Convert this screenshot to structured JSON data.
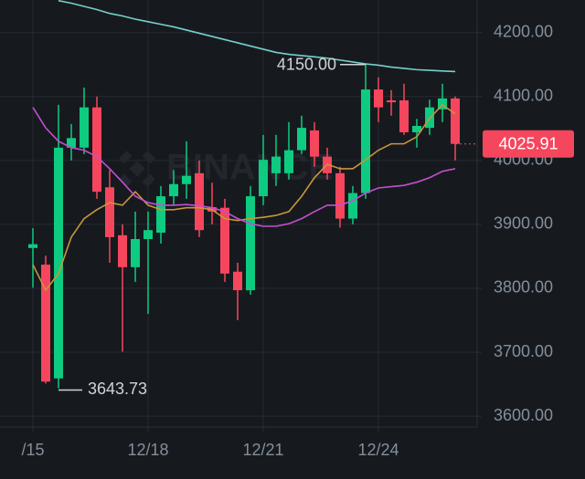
{
  "chart_data": {
    "type": "candlestick",
    "watermark": "BINANCE",
    "categories": [
      "/15",
      null,
      null,
      null,
      null,
      null,
      null,
      null,
      null,
      "12/18",
      null,
      null,
      null,
      null,
      null,
      null,
      null,
      null,
      "12/21",
      null,
      null,
      null,
      null,
      null,
      null,
      null,
      null,
      "12/24",
      null,
      null,
      null,
      null,
      null,
      null
    ],
    "open": [
      3863,
      3837,
      3659,
      4020,
      4020,
      4083,
      3958,
      3883,
      3833,
      3877,
      3887,
      3944,
      3963,
      3980,
      3927,
      3926,
      3826,
      3797,
      3944,
      3980,
      3980,
      4016,
      4047,
      4006,
      3980,
      3909,
      3949,
      4111,
      4094,
      4094,
      4044,
      4051,
      4080,
      4097
    ],
    "high": [
      3894,
      3851,
      4087,
      4057,
      4114,
      4100,
      3985,
      3900,
      3920,
      3920,
      3960,
      3985,
      4030,
      4000,
      3965,
      3940,
      3840,
      3960,
      4040,
      4040,
      4060,
      4070,
      4060,
      4020,
      3990,
      3960,
      4150,
      4130,
      4110,
      4120,
      4065,
      4095,
      4120,
      4100
    ],
    "low": [
      3801,
      3651,
      3643.73,
      4000,
      4010,
      3940,
      3840,
      3701,
      3810,
      3760,
      3870,
      3930,
      3940,
      3880,
      3900,
      3810,
      3750,
      3790,
      3930,
      3960,
      3970,
      4010,
      3990,
      3970,
      3895,
      3900,
      3940,
      4060,
      4070,
      4040,
      4020,
      4040,
      4060,
      4000
    ],
    "close": [
      3869,
      3654,
      4020,
      4035,
      4083,
      3951,
      3880,
      3833,
      3877,
      3891,
      3944,
      3963,
      3976,
      3891,
      3920,
      3823,
      3797,
      3944,
      4001,
      4006,
      4016,
      4051,
      4006,
      3980,
      3909,
      3949,
      4111,
      4083,
      4091,
      4044,
      4054,
      4083,
      4097,
      4025.91
    ],
    "up_color": "#0ecb81",
    "down_color": "#f6465d",
    "lines": [
      {
        "color": "#76d0cc",
        "values": [
          null,
          null,
          4250,
          4246,
          4241,
          4236,
          4230,
          4226,
          4221,
          4217,
          4213,
          4209,
          4204,
          4199,
          4194,
          4189,
          4184,
          4179,
          4174,
          4169,
          4166,
          4164,
          4162,
          4160,
          4157,
          4154,
          4151,
          4149,
          4146,
          4144,
          4142,
          4141,
          4140,
          4139
        ]
      },
      {
        "color": "#c8953c",
        "values": [
          3837,
          3797,
          3823,
          3880,
          3909,
          3923,
          3934,
          3930,
          3951,
          3930,
          3923,
          3923,
          3926,
          3926,
          3923,
          3909,
          3906,
          3909,
          3911,
          3914,
          3920,
          3944,
          3973,
          3994,
          3987,
          3987,
          4001,
          4016,
          4026,
          4026,
          4037,
          4066,
          4087,
          4073
        ]
      },
      {
        "color": "#c34fd0",
        "values": [
          4083,
          4051,
          4030,
          4020,
          4016,
          4006,
          3987,
          3966,
          3944,
          3934,
          3930,
          3930,
          3931,
          3929,
          3926,
          3920,
          3909,
          3901,
          3897,
          3897,
          3901,
          3909,
          3920,
          3930,
          3930,
          3937,
          3949,
          3957,
          3959,
          3961,
          3966,
          3973,
          3983,
          3987
        ]
      }
    ],
    "ylim": [
      3583,
      4251
    ],
    "yticks": [
      {
        "value": 3600,
        "label": "3600.00"
      },
      {
        "value": 3700,
        "label": "3700.00"
      },
      {
        "value": 3800,
        "label": "3800.00"
      },
      {
        "value": 3900,
        "label": "3900.00"
      },
      {
        "value": 4000,
        "label": "4000.00"
      },
      {
        "value": 4100,
        "label": "4100.00"
      },
      {
        "value": 4200,
        "label": "4200.00"
      }
    ],
    "grid": true,
    "high_label": {
      "value": 4150,
      "label": "4150.00"
    },
    "low_label": 3643.73,
    "last_price": 4025.91
  }
}
